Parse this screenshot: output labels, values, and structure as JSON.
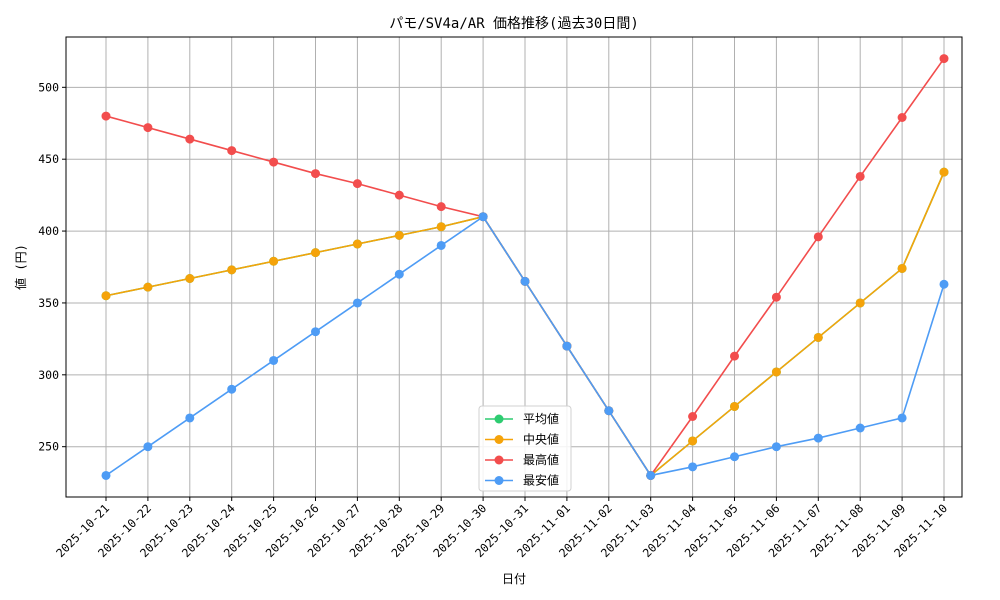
{
  "chart_data": {
    "type": "line",
    "title": "パモ/SV4a/AR 価格推移(過去30日間)",
    "xlabel": "日付",
    "ylabel": "値 (円)",
    "ylim": [
      215,
      535
    ],
    "yticks": [
      250,
      300,
      350,
      400,
      450,
      500
    ],
    "grid": true,
    "legend_position": "lower-center",
    "categories": [
      "2025-10-21",
      "2025-10-22",
      "2025-10-23",
      "2025-10-24",
      "2025-10-25",
      "2025-10-26",
      "2025-10-27",
      "2025-10-28",
      "2025-10-29",
      "2025-10-30",
      "2025-10-31",
      "2025-11-01",
      "2025-11-02",
      "2025-11-03",
      "2025-11-04",
      "2025-11-05",
      "2025-11-06",
      "2025-11-07",
      "2025-11-08",
      "2025-11-09",
      "2025-11-10"
    ],
    "series": [
      {
        "name": "平均値",
        "color": "#2ecc71",
        "values": [
          355,
          361,
          367,
          373,
          379,
          385,
          391,
          397,
          403,
          410,
          365,
          320,
          275,
          230,
          254,
          278,
          302,
          326,
          350,
          374,
          441
        ]
      },
      {
        "name": "中央値",
        "color": "#f5a30a",
        "values": [
          355,
          361,
          367,
          373,
          379,
          385,
          391,
          397,
          403,
          410,
          365,
          320,
          275,
          230,
          254,
          278,
          302,
          326,
          350,
          374,
          441
        ]
      },
      {
        "name": "最高値",
        "color": "#f24d4d",
        "values": [
          480,
          472,
          464,
          456,
          448,
          440,
          433,
          425,
          417,
          410,
          365,
          320,
          275,
          230,
          271,
          313,
          354,
          396,
          438,
          479,
          520
        ]
      },
      {
        "name": "最安値",
        "color": "#4e9cf5",
        "values": [
          230,
          250,
          270,
          290,
          310,
          330,
          350,
          370,
          390,
          410,
          365,
          320,
          275,
          230,
          236,
          243,
          250,
          256,
          263,
          270,
          363
        ]
      }
    ]
  }
}
